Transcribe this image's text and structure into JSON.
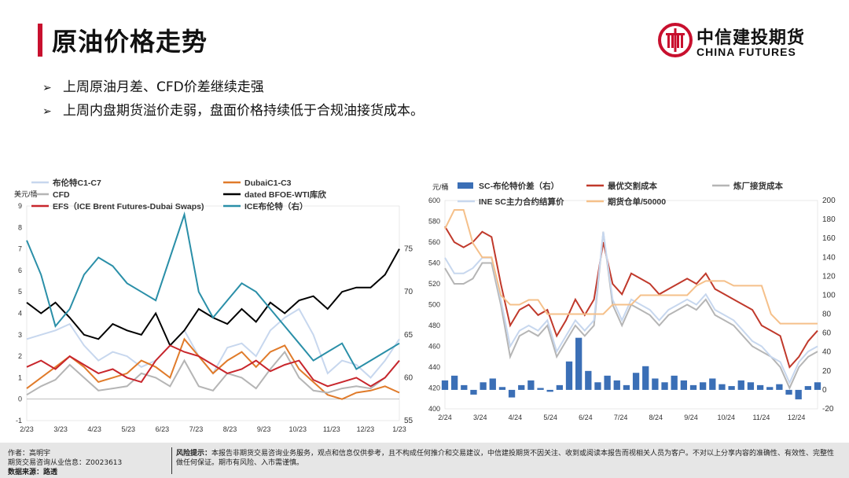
{
  "header": {
    "title": "原油价格走势",
    "logo_cn": "中信建投期货",
    "logo_en": "CHINA FUTURES",
    "accent_color": "#c8102e"
  },
  "bullets": [
    {
      "arrow": "➢",
      "text": "上周原油月差、CFD价差继续走强"
    },
    {
      "arrow": "➢",
      "text": "上周内盘期货溢价走弱，盘面价格持续低于合规油接货成本。"
    }
  ],
  "chart_data": [
    {
      "type": "line",
      "ylabel": "美元/桶",
      "x_ticks": [
        "2/23",
        "3/23",
        "4/23",
        "5/23",
        "6/23",
        "7/23",
        "8/23",
        "9/23",
        "10/23",
        "11/23",
        "12/23",
        "1/23"
      ],
      "y_left_ticks": [
        "9",
        "8",
        "7",
        "6",
        "5",
        "4",
        "3",
        "2",
        "1",
        "0",
        "-1"
      ],
      "y_right_ticks": [
        "75",
        "70",
        "65",
        "60",
        "55"
      ],
      "ylim_left": [
        -1,
        9
      ],
      "ylim_right": [
        55,
        80
      ],
      "series": [
        {
          "name": "布伦特C1-C7",
          "axis": "left",
          "color": "#c7d7ee",
          "values": [
            2.8,
            3.0,
            3.2,
            3.5,
            2.5,
            1.8,
            2.2,
            2.0,
            1.5,
            1.8,
            2.5,
            3.2,
            2.0,
            1.2,
            2.4,
            2.6,
            2.0,
            3.2,
            3.8,
            4.2,
            3.0,
            1.2,
            1.8,
            1.6,
            1.0,
            1.8,
            2.8
          ]
        },
        {
          "name": "DubaiC1-C3",
          "axis": "left",
          "color": "#e07b2a",
          "values": [
            0.5,
            1.0,
            1.5,
            2.0,
            1.5,
            0.8,
            1.0,
            1.2,
            1.8,
            1.5,
            1.0,
            2.8,
            2.0,
            1.2,
            1.8,
            2.2,
            1.5,
            2.2,
            2.5,
            1.4,
            0.8,
            0.2,
            0.0,
            0.3,
            0.4,
            0.6,
            0.3
          ]
        },
        {
          "name": "CFD",
          "axis": "left",
          "color": "#b5b5b5",
          "values": [
            0.2,
            0.6,
            0.9,
            1.6,
            1.0,
            0.4,
            0.5,
            0.6,
            1.2,
            1.0,
            0.6,
            1.8,
            0.6,
            0.4,
            1.2,
            1.0,
            0.5,
            1.4,
            2.2,
            1.0,
            0.4,
            0.3,
            0.5,
            0.6,
            0.5,
            1.0,
            1.8
          ]
        },
        {
          "name": "dated BFOE-WTI库欣",
          "axis": "left",
          "color": "#000000",
          "values": [
            4.5,
            4.0,
            4.5,
            3.8,
            3.0,
            2.8,
            3.5,
            3.2,
            3.0,
            4.0,
            2.5,
            3.2,
            4.2,
            3.8,
            3.5,
            4.2,
            3.6,
            4.5,
            4.0,
            4.6,
            4.8,
            4.2,
            5.0,
            5.2,
            5.2,
            5.8,
            7.0
          ]
        },
        {
          "name": "EFS（ICE Brent Futures-Dubai Swaps)",
          "axis": "left",
          "color": "#c8262c",
          "values": [
            1.5,
            1.8,
            1.4,
            2.0,
            1.6,
            1.2,
            1.4,
            1.0,
            0.8,
            1.8,
            2.5,
            2.2,
            2.0,
            1.6,
            1.2,
            1.4,
            1.8,
            1.3,
            1.6,
            1.8,
            0.9,
            0.6,
            0.8,
            1.0,
            0.6,
            1.0,
            1.8
          ]
        },
        {
          "name": "ICE布伦特（右）",
          "axis": "right",
          "color": "#2a8fa8",
          "values": [
            76,
            72,
            66,
            68,
            72,
            74,
            73,
            71,
            70,
            69,
            74,
            79,
            70,
            67,
            69,
            71,
            70,
            68,
            66,
            64,
            62,
            63,
            64,
            61,
            62,
            63,
            64
          ]
        }
      ]
    },
    {
      "type": "line",
      "ylabel": "元/桶",
      "x_ticks": [
        "2/24",
        "3/24",
        "4/24",
        "5/24",
        "6/24",
        "7/24",
        "8/24",
        "9/24",
        "10/24",
        "11/24",
        "12/24"
      ],
      "y_left_ticks": [
        "600",
        "580",
        "560",
        "540",
        "520",
        "500",
        "480",
        "460",
        "440",
        "420",
        "400"
      ],
      "y_right_ticks": [
        "200",
        "180",
        "160",
        "140",
        "120",
        "100",
        "80",
        "60",
        "40",
        "20",
        "0",
        "-20"
      ],
      "ylim_left": [
        400,
        600
      ],
      "ylim_right": [
        -20,
        200
      ],
      "series": [
        {
          "name": "SC-布伦特价差（右）",
          "axis": "right",
          "type": "bar",
          "color": "#3b6fb6",
          "values": [
            10,
            15,
            5,
            -5,
            8,
            12,
            3,
            -8,
            5,
            10,
            2,
            -2,
            5,
            30,
            55,
            20,
            8,
            15,
            10,
            5,
            18,
            25,
            12,
            8,
            15,
            10,
            5,
            8,
            12,
            6,
            4,
            10,
            8,
            5,
            3,
            6,
            -5,
            -10,
            4,
            8
          ]
        },
        {
          "name": "最优交割成本",
          "axis": "left",
          "color": "#c0392b",
          "values": [
            575,
            560,
            555,
            560,
            570,
            565,
            520,
            480,
            495,
            500,
            490,
            495,
            470,
            485,
            505,
            490,
            505,
            560,
            520,
            510,
            530,
            525,
            520,
            510,
            515,
            520,
            525,
            520,
            530,
            515,
            510,
            505,
            500,
            495,
            480,
            475,
            470,
            440,
            450,
            465,
            475
          ]
        },
        {
          "name": "炼厂接货成本",
          "axis": "left",
          "color": "#b5b5b5",
          "values": [
            535,
            520,
            520,
            525,
            540,
            540,
            500,
            450,
            470,
            475,
            470,
            480,
            450,
            465,
            480,
            470,
            480,
            570,
            500,
            480,
            500,
            495,
            490,
            480,
            490,
            495,
            500,
            495,
            505,
            490,
            485,
            480,
            470,
            460,
            455,
            450,
            440,
            420,
            440,
            450,
            455
          ]
        },
        {
          "name": "INE SC主力合约结算价",
          "axis": "left",
          "color": "#c7d7ee",
          "values": [
            545,
            530,
            530,
            535,
            545,
            545,
            505,
            460,
            475,
            480,
            475,
            485,
            455,
            470,
            485,
            475,
            485,
            570,
            505,
            485,
            505,
            500,
            495,
            485,
            495,
            500,
            505,
            500,
            510,
            495,
            490,
            485,
            475,
            465,
            460,
            450,
            445,
            425,
            445,
            455,
            460
          ]
        },
        {
          "name": "期货仓单/50000",
          "axis": "right",
          "color": "#f5c08a",
          "values": [
            170,
            190,
            190,
            155,
            140,
            140,
            100,
            90,
            90,
            95,
            95,
            80,
            80,
            80,
            80,
            80,
            80,
            80,
            90,
            90,
            90,
            100,
            100,
            100,
            100,
            100,
            100,
            110,
            115,
            115,
            115,
            110,
            110,
            110,
            110,
            80,
            70,
            70,
            70,
            70,
            70
          ]
        }
      ]
    }
  ],
  "footer": {
    "author_label": "作者：",
    "author": "高明宇",
    "license_label": "期货交易咨询从业信息：",
    "license": "Z0023613",
    "source_label": "数据来源：",
    "source": "路透",
    "risk_label": "风险提示：",
    "risk_text": "本报告非期货交易咨询业务服务，观点和信息仅供参考，且不构成任何推介和交易建议，中信建投期货不因关注、收到或阅读本报告而视相关人员为客户。不对以上分享内容的准确性、有效性、完整性做任何保证。期市有风险、入市需谨慎。"
  }
}
